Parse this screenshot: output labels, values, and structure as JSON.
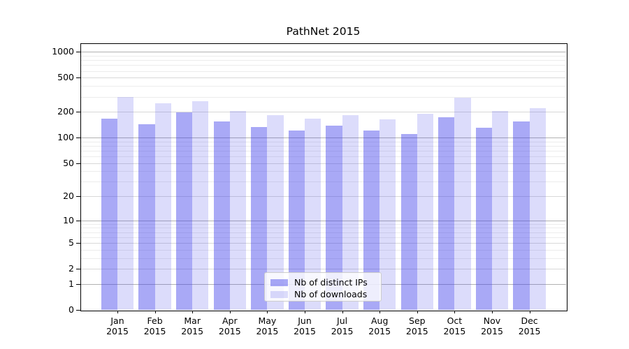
{
  "title": "PathNet 2015",
  "chart_data": {
    "type": "bar",
    "title": "PathNet 2015",
    "categories": [
      "Jan 2015",
      "Feb 2015",
      "Mar 2015",
      "Apr 2015",
      "May 2015",
      "Jun 2015",
      "Jul 2015",
      "Aug 2015",
      "Sep 2015",
      "Oct 2015",
      "Nov 2015",
      "Dec 2015"
    ],
    "series": [
      {
        "name": "Nb of distinct IPs",
        "color": "#3c3ceb",
        "alpha": 0.44,
        "values": [
          166,
          142,
          198,
          153,
          133,
          120,
          137,
          121,
          110,
          171,
          131,
          155
        ]
      },
      {
        "name": "Nb of downloads",
        "color": "#3c3ceb",
        "alpha": 0.18,
        "values": [
          295,
          251,
          265,
          204,
          184,
          166,
          182,
          164,
          188,
          291,
          203,
          220
        ]
      }
    ],
    "xlabel": "",
    "ylabel": "",
    "yscale": "symlog(log10(1+v))",
    "yticks": [
      0,
      1,
      2,
      5,
      10,
      20,
      50,
      100,
      200,
      500,
      1000
    ],
    "minor_yticks_factors": [
      3,
      4,
      6,
      7,
      8,
      9
    ],
    "ylim": [
      0,
      1255
    ],
    "grid": "horizontal",
    "grid_colors": {
      "decade": "#b2b2b2",
      "labeled": "#d8d8d8",
      "minor": "#ececec"
    },
    "spine_color": "#000000",
    "text_color": "#000000",
    "background": "#ffffff",
    "legend_position": "lower-center-inside"
  }
}
